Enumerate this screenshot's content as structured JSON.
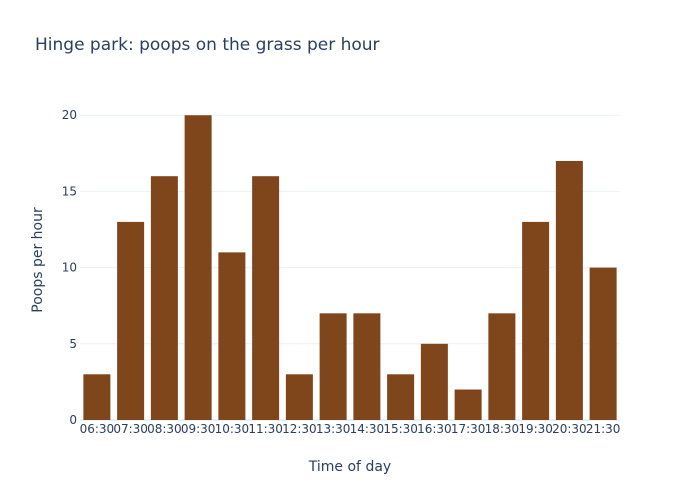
{
  "chart_data": {
    "type": "bar",
    "title": "Hinge park: poops on the grass per hour",
    "xlabel": "Time of day",
    "ylabel": "Poops per hour",
    "categories": [
      "06:30",
      "07:30",
      "08:30",
      "09:30",
      "10:30",
      "11:30",
      "12:30",
      "13:30",
      "14:30",
      "15:30",
      "16:30",
      "17:30",
      "18:30",
      "19:30",
      "20:30",
      "21:30"
    ],
    "values": [
      3,
      13,
      16,
      20,
      11,
      16,
      3,
      7,
      7,
      3,
      5,
      2,
      7,
      13,
      17,
      10
    ],
    "ylim": [
      0,
      21
    ],
    "yticks": [
      0,
      5,
      10,
      15,
      20
    ],
    "grid": true,
    "bar_color": "#7f461b"
  }
}
